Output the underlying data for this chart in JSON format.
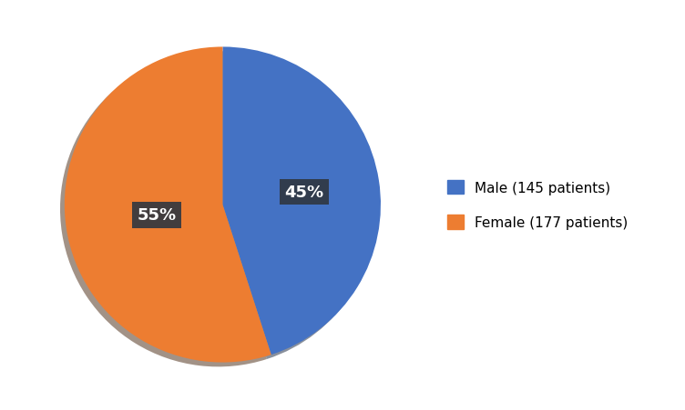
{
  "labels": [
    "Male (145 patients)",
    "Female (177 patients)"
  ],
  "values": [
    145,
    177
  ],
  "percentages": [
    "45%",
    "55%"
  ],
  "colors": [
    "#4472C4",
    "#ED7D31"
  ],
  "background_color": "#ffffff",
  "label_font_color": "white",
  "label_bg_color": "#2F3640",
  "label_fontsize": 13,
  "legend_fontsize": 11,
  "startangle": 90,
  "figsize": [
    7.52,
    4.52
  ],
  "dpi": 100,
  "label_radii": [
    0.52,
    0.42
  ]
}
